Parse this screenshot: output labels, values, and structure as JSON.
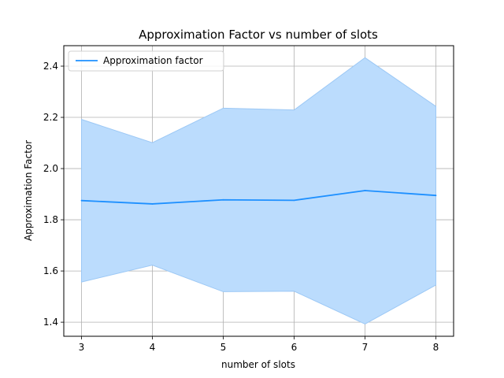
{
  "chart_data": {
    "type": "line",
    "title": "Approximation Factor vs number of slots",
    "xlabel": "number of slots",
    "ylabel": "Approximation Factor",
    "x": [
      3,
      4,
      5,
      6,
      7,
      8
    ],
    "series": [
      {
        "name": "Approximation factor",
        "values": [
          1.875,
          1.862,
          1.878,
          1.876,
          1.914,
          1.895
        ],
        "lower": [
          1.557,
          1.623,
          1.519,
          1.521,
          1.393,
          1.545
        ],
        "upper": [
          2.192,
          2.101,
          2.236,
          2.229,
          2.433,
          2.243
        ],
        "color": "#1e90ff",
        "band_color": "#bbdcfd"
      }
    ],
    "xlim": [
      2.75,
      8.25
    ],
    "ylim": [
      1.345,
      2.48
    ],
    "x_ticks": [
      "3",
      "4",
      "5",
      "6",
      "7",
      "8"
    ],
    "y_ticks": [
      "1.4",
      "1.6",
      "1.8",
      "2.0",
      "2.2",
      "2.4"
    ],
    "grid": true,
    "legend_position": "upper-left"
  }
}
